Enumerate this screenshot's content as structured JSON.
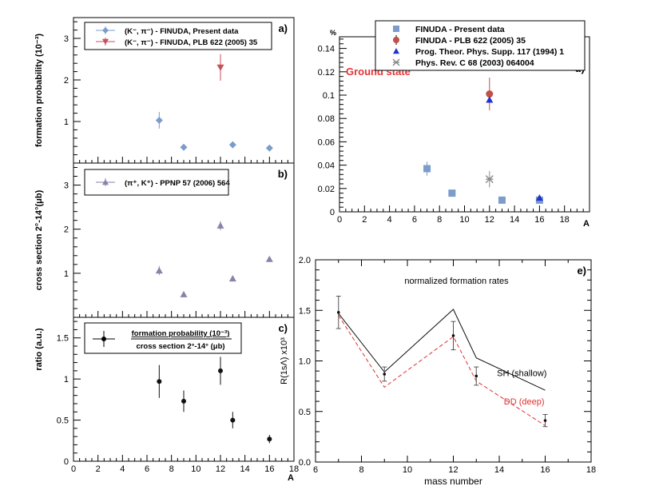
{
  "chart_data": [
    {
      "id": "a",
      "type": "scatter",
      "panel_label": "a)",
      "ylabel": "formation probability (10⁻³)",
      "xlabel": "",
      "xlim": [
        0,
        18
      ],
      "ylim": [
        0,
        3.5
      ],
      "xticks": [
        0,
        2,
        4,
        6,
        8,
        10,
        12,
        14,
        16,
        18
      ],
      "yticks": [
        1,
        2,
        3
      ],
      "legend": [
        {
          "label": "(K⁻, π⁻) - FINUDA, Present data",
          "marker": "diamond",
          "color": "#7b9ccc"
        },
        {
          "label": "(K⁻, π⁻) - FINUDA, PLB 622 (2005) 35",
          "marker": "tri-down",
          "color": "#c8505a"
        }
      ],
      "series": [
        {
          "name": "FINUDA Present data",
          "marker": "diamond",
          "color": "#7b9ccc",
          "x": [
            7,
            9,
            13,
            16
          ],
          "y": [
            1.03,
            0.38,
            0.44,
            0.36
          ],
          "err": [
            0.2,
            0.06,
            0.08,
            0.07
          ]
        },
        {
          "name": "FINUDA PLB 622",
          "marker": "tri-down",
          "color": "#c8505a",
          "x": [
            12
          ],
          "y": [
            2.3
          ],
          "err": [
            0.32
          ]
        }
      ]
    },
    {
      "id": "b",
      "type": "scatter",
      "panel_label": "b)",
      "ylabel": "cross section 2°-14°(μb)",
      "xlabel": "",
      "xlim": [
        0,
        18
      ],
      "ylim": [
        0,
        3.5
      ],
      "xticks": [
        0,
        2,
        4,
        6,
        8,
        10,
        12,
        14,
        16,
        18
      ],
      "yticks": [
        1,
        2,
        3
      ],
      "legend": [
        {
          "label": "(π⁺, K⁺) - PPNP 57 (2006) 564",
          "marker": "tri-up",
          "color": "#8a82a8"
        }
      ],
      "series": [
        {
          "name": "PPNP 57",
          "marker": "tri-up",
          "color": "#8a82a8",
          "x": [
            7,
            9,
            12,
            13,
            16
          ],
          "y": [
            1.06,
            0.52,
            2.08,
            0.88,
            1.32
          ],
          "err": [
            0.1,
            0,
            0.1,
            0,
            0
          ]
        }
      ]
    },
    {
      "id": "c",
      "type": "scatter",
      "panel_label": "c)",
      "ylabel": "ratio (a.u.)",
      "xlabel": "A",
      "xlim": [
        0,
        18
      ],
      "ylim": [
        0,
        1.75
      ],
      "xticks": [
        0,
        2,
        4,
        6,
        8,
        10,
        12,
        14,
        16,
        18
      ],
      "yticks": [
        0,
        0.5,
        1,
        1.5
      ],
      "legend_num": "formation probability (10⁻³)",
      "legend_den": "cross section 2°-14° (μb)",
      "series": [
        {
          "name": "ratio",
          "marker": "circle",
          "color": "#111111",
          "x": [
            7,
            9,
            12,
            13,
            16
          ],
          "y": [
            0.97,
            0.73,
            1.1,
            0.5,
            0.27
          ],
          "err": [
            0.2,
            0.13,
            0.17,
            0.1,
            0.05
          ]
        }
      ]
    },
    {
      "id": "d",
      "type": "scatter",
      "panel_label": "d)",
      "ylabel": "%",
      "xlabel": "A",
      "annotation": "Ground state",
      "annotation_color": "#e43434",
      "xlim": [
        0,
        20
      ],
      "ylim": [
        0,
        0.15
      ],
      "xticks": [
        0,
        2,
        4,
        6,
        8,
        10,
        12,
        14,
        16,
        18
      ],
      "yticks": [
        0,
        0.02,
        0.04,
        0.06,
        0.08,
        0.1,
        0.12,
        0.14
      ],
      "legend": [
        {
          "label": "FINUDA - Present data",
          "marker": "square",
          "color": "#7b9ccc"
        },
        {
          "label": "FINUDA - PLB 622 (2005) 35",
          "marker": "circle",
          "color": "#c0504a"
        },
        {
          "label": "Prog. Theor. Phys. Supp. 117 (1994) 1",
          "marker": "tri-up",
          "color": "#2233cc"
        },
        {
          "label": "Phys. Rev. C 68 (2003) 064004",
          "marker": "star",
          "color": "#888888"
        }
      ],
      "series": [
        {
          "name": "FINUDA - Present data",
          "marker": "square",
          "color": "#7b9ccc",
          "x": [
            7,
            9,
            13,
            16
          ],
          "y": [
            0.037,
            0.016,
            0.01,
            0.01
          ],
          "err": [
            0.006,
            0.002,
            0,
            0
          ]
        },
        {
          "name": "FINUDA - PLB 622",
          "marker": "circle",
          "color": "#c0504a",
          "x": [
            12
          ],
          "y": [
            0.101
          ],
          "err": [
            0.014
          ]
        },
        {
          "name": "Prog. Theor. Phys. Supp.",
          "marker": "tri-up",
          "color": "#2233cc",
          "x": [
            12,
            16
          ],
          "y": [
            0.096,
            0.012
          ],
          "err": [
            0,
            0
          ]
        },
        {
          "name": "Phys. Rev. C 68",
          "marker": "star",
          "color": "#888888",
          "x": [
            12
          ],
          "y": [
            0.028
          ],
          "err": [
            0.007
          ]
        }
      ]
    },
    {
      "id": "e",
      "type": "line",
      "panel_label": "e)",
      "title": "normalized formation rates",
      "xlabel": "mass number",
      "ylabel": "R(1sΛ) x10³",
      "xlim": [
        6,
        18
      ],
      "ylim": [
        0,
        2.0
      ],
      "xticks": [
        6,
        8,
        10,
        12,
        14,
        16,
        18
      ],
      "yticks": [
        0,
        0.5,
        1.0,
        1.5,
        2.0
      ],
      "tick_labels_y": [
        "0.0",
        "0.5",
        "1.0",
        "1.5",
        "2.0"
      ],
      "sh_label": "SH (shallow)",
      "dd_label": "DD (deep)",
      "series": [
        {
          "name": "SH (shallow)",
          "style": "solid",
          "color": "#111111",
          "x": [
            7,
            9,
            12,
            13,
            16
          ],
          "y": [
            1.47,
            0.89,
            1.51,
            1.03,
            0.71
          ]
        },
        {
          "name": "DD (deep)",
          "style": "dashed",
          "color": "#e03030",
          "x": [
            7,
            9,
            12,
            13,
            16
          ],
          "y": [
            1.45,
            0.74,
            1.24,
            0.8,
            0.36
          ]
        },
        {
          "name": "data",
          "style": "points",
          "color": "#111111",
          "x": [
            7,
            9,
            12,
            13,
            16
          ],
          "y": [
            1.48,
            0.87,
            1.25,
            0.85,
            0.41
          ],
          "err": [
            0.16,
            0.07,
            0.14,
            0.09,
            0.06
          ]
        }
      ]
    }
  ]
}
